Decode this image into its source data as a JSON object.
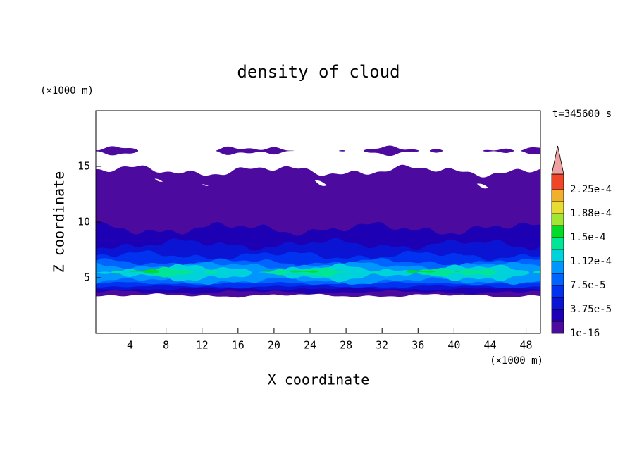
{
  "chart_data": {
    "type": "contour",
    "title": "density of cloud",
    "x_label": "X coordinate",
    "y_label": "Z coordinate",
    "x_unit": "(×1000 m)",
    "y_unit": "(×1000 m)",
    "time_label": "t=345600 s",
    "xlim": [
      0.2,
      49.6
    ],
    "xticks": [
      4,
      8,
      12,
      16,
      20,
      24,
      28,
      32,
      36,
      40,
      44,
      48
    ],
    "ylim": [
      0,
      20
    ],
    "yticks": [
      5,
      10,
      15
    ],
    "colorbar": {
      "levels": [
        1e-16,
        1.875e-05,
        {
          "value": 3.75e-05,
          "label": "3.75e-5"
        },
        5.625e-05,
        {
          "value": 7.5e-05,
          "label": "7.5e-5"
        },
        9.375e-05,
        {
          "value": 0.000112,
          "label": "1.12e-4"
        },
        0.00013125,
        {
          "value": 0.00015,
          "label": "1.5e-4"
        },
        0.00016875,
        {
          "value": 0.000188,
          "label": "1.88e-4"
        },
        0.00020625,
        {
          "value": 0.000225,
          "label": "2.25e-4"
        }
      ],
      "colors": [
        "#4c0b9e",
        "#1e00b4",
        "#0a14d2",
        "#0032f0",
        "#0064ff",
        "#0096ff",
        "#00d2dc",
        "#00e696",
        "#00dc28",
        "#a0e632",
        "#e6dc32",
        "#f0af2d",
        "#f04628"
      ],
      "over_color": "#f0a0a0"
    }
  }
}
